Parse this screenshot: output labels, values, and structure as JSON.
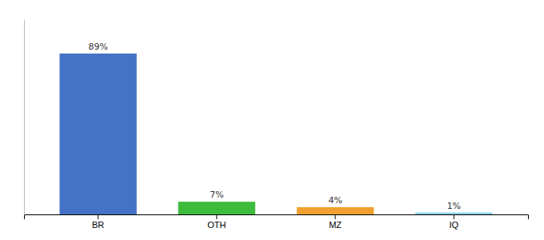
{
  "chart_data": {
    "type": "bar",
    "categories": [
      "BR",
      "OTH",
      "MZ",
      "IQ"
    ],
    "values": [
      89,
      7,
      4,
      1
    ],
    "value_labels": [
      "89%",
      "7%",
      "4%",
      "1%"
    ],
    "colors": [
      "#4472c4",
      "#3dbb3d",
      "#f0a030",
      "#87ceeb"
    ],
    "ylim": [
      0,
      108
    ],
    "data_labels": true,
    "tick_labels": "x",
    "grid": false
  }
}
